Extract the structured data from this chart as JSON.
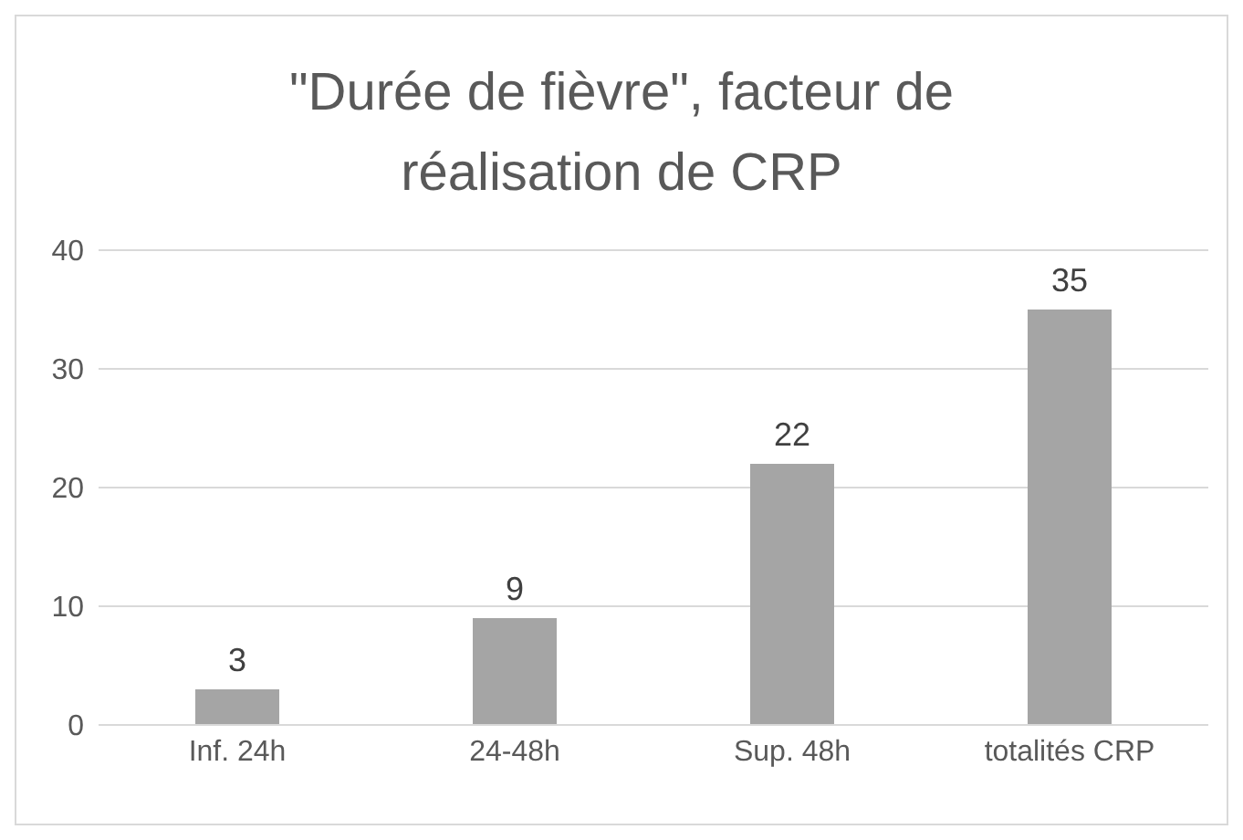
{
  "chart_data": {
    "type": "bar",
    "title": "\"Durée de fièvre\", facteur de réalisation de CRP",
    "categories": [
      "Inf. 24h",
      "24-48h",
      "Sup. 48h",
      "totalités CRP"
    ],
    "values": [
      3,
      9,
      22,
      35
    ],
    "color": "#a5a5a5",
    "ylim": [
      0,
      40
    ],
    "yticks": [
      0,
      10,
      20,
      30,
      40
    ],
    "grid": "y",
    "data_labels": true,
    "legend": false
  }
}
